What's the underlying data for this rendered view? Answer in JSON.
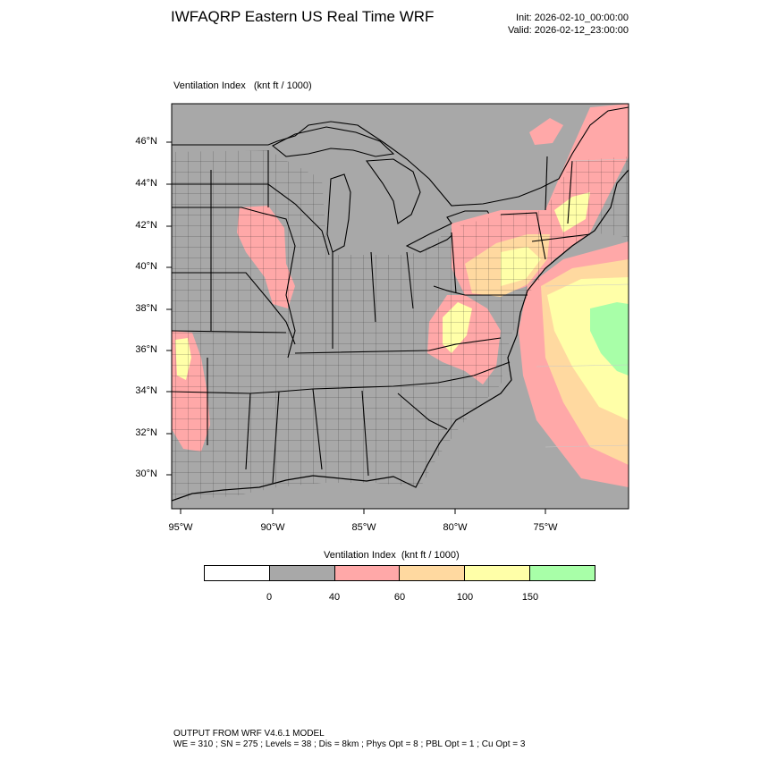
{
  "header": {
    "title": "IWFAQRP Eastern US Real Time WRF",
    "init": "Init: 2026-02-10_00:00:00",
    "valid": "Valid: 2026-02-12_23:00:00"
  },
  "field_label": "Ventilation Index   (knt ft / 1000)",
  "map": {
    "lat_labels": [
      "46°N",
      "44°N",
      "42°N",
      "40°N",
      "38°N",
      "36°N",
      "34°N",
      "32°N",
      "30°N"
    ],
    "lon_labels": [
      "95°W",
      "90°W",
      "85°W",
      "80°W",
      "75°W"
    ],
    "colors": {
      "below_0": "#ffffff",
      "0_40": "#a8a8a8",
      "40_60": "#ffa8a8",
      "60_100": "#ffd9a0",
      "100_150": "#ffffa8",
      "above_150": "#a8ffa8"
    }
  },
  "colorbar": {
    "title": "Ventilation Index  (knt ft / 1000)",
    "colors": [
      "#ffffff",
      "#a8a8a8",
      "#ffa8a8",
      "#ffd9a0",
      "#ffffa8",
      "#a8ffa8"
    ],
    "ticks": [
      "0",
      "40",
      "60",
      "100",
      "150"
    ]
  },
  "footer": {
    "line1": "OUTPUT FROM WRF V4.6.1 MODEL",
    "line2": "WE = 310 ; SN = 275 ; Levels = 38 ; Dis = 8km ; Phys Opt = 8 ; PBL Opt = 1 ; Cu Opt = 3"
  }
}
